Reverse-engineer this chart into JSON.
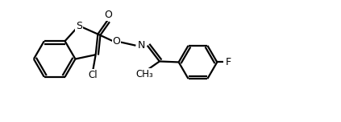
{
  "bg_color": "#ffffff",
  "line_color": "#000000",
  "line_width": 1.6,
  "figsize": [
    4.23,
    1.52
  ],
  "dpi": 100,
  "xlim": [
    0,
    8.5
  ],
  "ylim": [
    0,
    2.9
  ]
}
